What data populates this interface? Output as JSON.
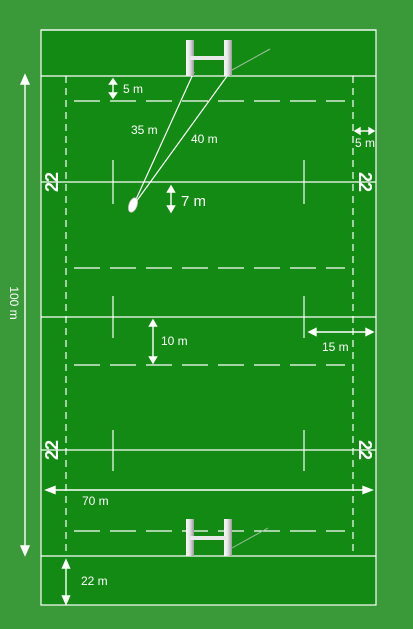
{
  "colors": {
    "background": "#3a9a3a",
    "field": "#138a13",
    "lines": "#ffffff"
  },
  "labels": {
    "goal_line_5m": "5 m",
    "kick_35m": "35 m",
    "kick_40m": "40 m",
    "touch_5m": "5 m",
    "line_22_tl": "22",
    "line_22_tr": "22",
    "line_22_bl": "22",
    "line_22_br": "22",
    "tee_7m": "7 m",
    "length_100m": "100 m",
    "halfway_10m": "10 m",
    "touch_15m": "15 m",
    "width_70m": "70 m",
    "ingoal_22m": "22 m"
  }
}
